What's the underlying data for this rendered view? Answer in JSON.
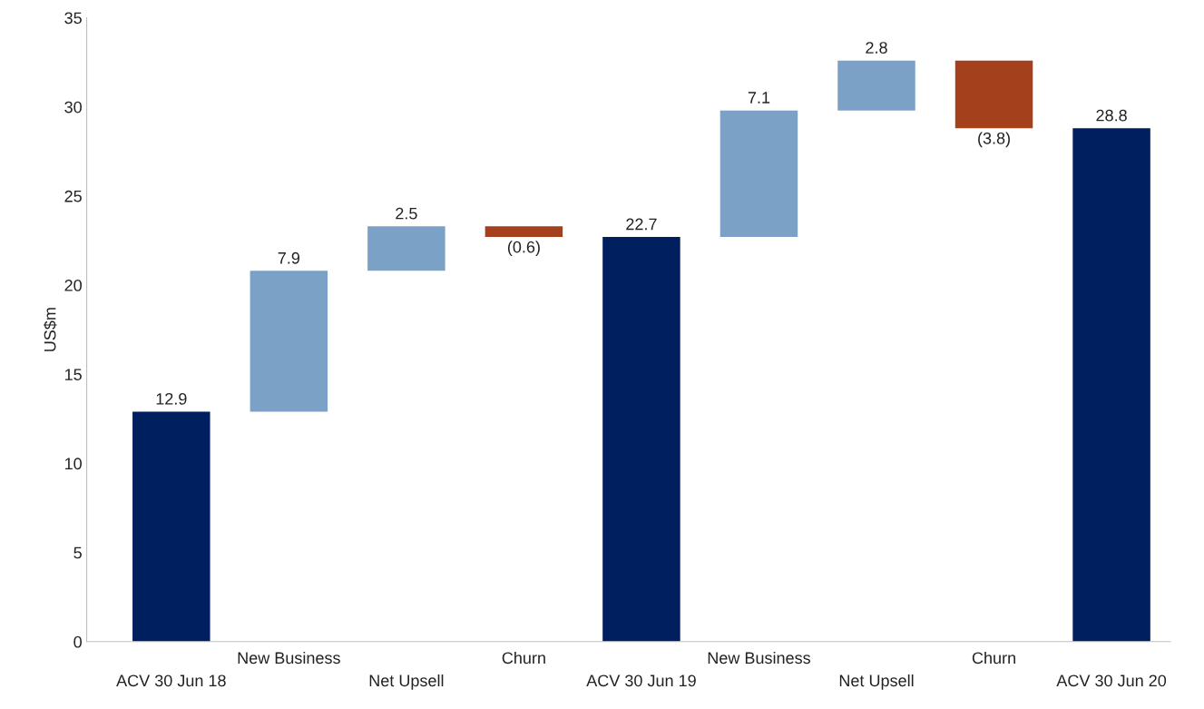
{
  "chart_data": {
    "type": "bar",
    "ylabel": "US$m",
    "categories": [
      "ACV 30 Jun 18",
      "New Business",
      "Net Upsell",
      "Churn",
      "ACV 30 Jun 19",
      "New Business",
      "Net Upsell",
      "Churn",
      "ACV 30 Jun 20"
    ],
    "base": [
      0,
      12.9,
      20.8,
      23.3,
      0,
      22.7,
      29.8,
      32.6,
      0
    ],
    "values": [
      12.9,
      7.9,
      2.5,
      -0.6,
      22.7,
      7.1,
      2.8,
      -3.8,
      28.8
    ],
    "value_labels": [
      "12.9",
      "7.9",
      "2.5",
      "(0.6)",
      "22.7",
      "7.1",
      "2.8",
      "(3.8)",
      "28.8"
    ],
    "colors": [
      "#001f5f",
      "#7ba2c6",
      "#7ba2c6",
      "#a5401d",
      "#001f5f",
      "#7ba2c6",
      "#7ba2c6",
      "#a5401d",
      "#001f5f"
    ],
    "ylim": [
      0,
      35
    ],
    "yticks": [
      0,
      5,
      10,
      15,
      20,
      25,
      30,
      35
    ],
    "grid": false
  }
}
